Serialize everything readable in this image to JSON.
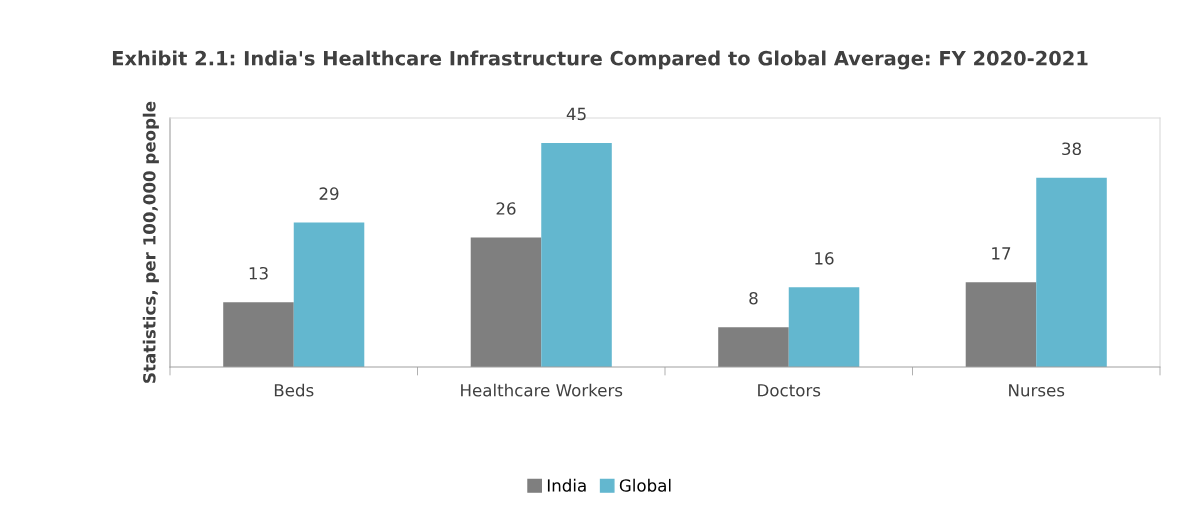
{
  "chart_data": {
    "type": "bar",
    "title": "Exhibit 2.1: India's Healthcare Infrastructure Compared to Global Average: FY 2020-2021",
    "ylabel": "Statistics, per 100,000 people",
    "categories": [
      "Beds",
      "Healthcare Workers",
      "Doctors",
      "Nurses"
    ],
    "series": [
      {
        "name": "India",
        "color": "#7f7f7f",
        "values": [
          13,
          26,
          8,
          17
        ]
      },
      {
        "name": "Global",
        "color": "#63b7cf",
        "values": [
          29,
          45,
          16,
          38
        ]
      }
    ],
    "ylim": [
      0,
      50
    ],
    "data_labels": true,
    "legend": "bottom",
    "grid": false
  }
}
